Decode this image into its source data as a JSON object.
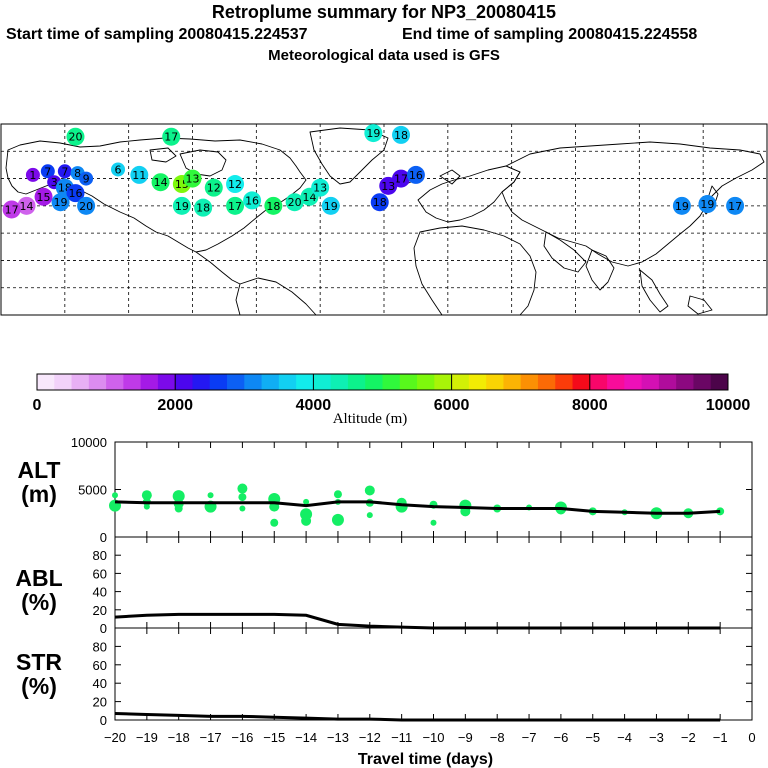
{
  "header": {
    "title": "Retroplume summary for NP3_20080415",
    "start_label": "Start time of sampling 20080415.224537",
    "end_label": "End time of sampling 20080415.224558",
    "met_label": "Meteorological data used is GFS"
  },
  "map": {
    "markers": [
      {
        "lon": -165,
        "lat": 62,
        "alt": 1900,
        "label": "1"
      },
      {
        "lon": -158,
        "lat": 64,
        "alt": 2600,
        "label": "7"
      },
      {
        "lon": -150,
        "lat": 64,
        "alt": 2300,
        "label": "7"
      },
      {
        "lon": -144,
        "lat": 63,
        "alt": 3000,
        "label": "8"
      },
      {
        "lon": -140,
        "lat": 60,
        "alt": 2800,
        "label": "9"
      },
      {
        "lon": -155,
        "lat": 58,
        "alt": 2000,
        "label": "3"
      },
      {
        "lon": -150,
        "lat": 55,
        "alt": 3200,
        "label": "18"
      },
      {
        "lon": -145,
        "lat": 52,
        "alt": 2600,
        "label": "16"
      },
      {
        "lon": -160,
        "lat": 50,
        "alt": 1600,
        "label": "15"
      },
      {
        "lon": -168,
        "lat": 45,
        "alt": 1200,
        "label": "14"
      },
      {
        "lon": -152,
        "lat": 47,
        "alt": 3000,
        "label": "19"
      },
      {
        "lon": -140,
        "lat": 45,
        "alt": 3200,
        "label": "20"
      },
      {
        "lon": -145,
        "lat": 83,
        "alt": 4600,
        "label": "20"
      },
      {
        "lon": -125,
        "lat": 65,
        "alt": 3500,
        "label": "6"
      },
      {
        "lon": -115,
        "lat": 62,
        "alt": 3700,
        "label": "11"
      },
      {
        "lon": -105,
        "lat": 58,
        "alt": 4800,
        "label": "14"
      },
      {
        "lon": -95,
        "lat": 57,
        "alt": 5600,
        "label": "15"
      },
      {
        "lon": -90,
        "lat": 60,
        "alt": 5000,
        "label": "13"
      },
      {
        "lon": -80,
        "lat": 55,
        "alt": 4500,
        "label": "12"
      },
      {
        "lon": -70,
        "lat": 57,
        "alt": 3900,
        "label": "12"
      },
      {
        "lon": -100,
        "lat": 83,
        "alt": 4700,
        "label": "17"
      },
      {
        "lon": -95,
        "lat": 45,
        "alt": 4400,
        "label": "19"
      },
      {
        "lon": -85,
        "lat": 44,
        "alt": 4300,
        "label": "18"
      },
      {
        "lon": -70,
        "lat": 45,
        "alt": 4500,
        "label": "17"
      },
      {
        "lon": -62,
        "lat": 48,
        "alt": 4200,
        "label": "16"
      },
      {
        "lon": -52,
        "lat": 45,
        "alt": 4800,
        "label": "18"
      },
      {
        "lon": -42,
        "lat": 47,
        "alt": 4400,
        "label": "20"
      },
      {
        "lon": -35,
        "lat": 50,
        "alt": 4400,
        "label": "14"
      },
      {
        "lon": -30,
        "lat": 55,
        "alt": 4000,
        "label": "13"
      },
      {
        "lon": -25,
        "lat": 45,
        "alt": 3500,
        "label": "19"
      },
      {
        "lon": -5,
        "lat": 85,
        "alt": 4100,
        "label": "19"
      },
      {
        "lon": 8,
        "lat": 84,
        "alt": 3600,
        "label": "18"
      },
      {
        "lon": 8,
        "lat": 60,
        "alt": 2200,
        "label": "17"
      },
      {
        "lon": 2,
        "lat": 56,
        "alt": 2000,
        "label": "13"
      },
      {
        "lon": -2,
        "lat": 47,
        "alt": 2600,
        "label": "18"
      },
      {
        "lon": 15,
        "lat": 62,
        "alt": 2800,
        "label": "16"
      },
      {
        "lon": 140,
        "lat": 45,
        "alt": 3100,
        "label": "19"
      },
      {
        "lon": 152,
        "lat": 46,
        "alt": 3000,
        "label": "19"
      },
      {
        "lon": 165,
        "lat": 45,
        "alt": 3200,
        "label": "17"
      },
      {
        "lon": -175,
        "lat": 43,
        "alt": 1300,
        "label": "17"
      }
    ]
  },
  "colorbar": {
    "min": 0,
    "max": 10000,
    "tick_labels": [
      "0",
      "2000",
      "4000",
      "6000",
      "8000",
      "10000"
    ],
    "title": "Altitude (m)",
    "colors": [
      "#f8e8fc",
      "#f2d2fa",
      "#e8b0f5",
      "#dc8cf0",
      "#cf62ec",
      "#bf3ae8",
      "#a41ae6",
      "#7c0aea",
      "#4c06ee",
      "#2418f2",
      "#0a3cf4",
      "#0c60f4",
      "#0e88f4",
      "#10aef4",
      "#12d0f2",
      "#12ecec",
      "#10eed4",
      "#0ef0b4",
      "#0cf28c",
      "#14f464",
      "#30f83c",
      "#58f81c",
      "#7ef80c",
      "#a8f408",
      "#d2f006",
      "#f2ec04",
      "#fad404",
      "#fcb404",
      "#fc9004",
      "#fc6a06",
      "#fc3c0a",
      "#f40a1a",
      "#f8066a",
      "#f80c9a",
      "#ee10b8",
      "#d410b4",
      "#b00c9c",
      "#8c0880",
      "#6a0664",
      "#4c044a"
    ]
  },
  "chart_data": [
    {
      "type": "scatter",
      "name": "ALT",
      "ylabel_line1": "ALT",
      "ylabel_line2": "(m)",
      "ylim": [
        0,
        10000
      ],
      "y_ticks": [
        "0",
        "5000",
        "10000"
      ],
      "xlim": [
        -20,
        0
      ],
      "mean_line": {
        "x": [
          -20,
          -19,
          -18,
          -17,
          -16,
          -15,
          -14,
          -13,
          -12,
          -11,
          -10,
          -9,
          -8,
          -7,
          -6,
          -5,
          -4,
          -3,
          -2,
          -1
        ],
        "y": [
          3700,
          3600,
          3600,
          3600,
          3600,
          3600,
          3300,
          3700,
          3700,
          3400,
          3200,
          3100,
          3000,
          3000,
          3000,
          2700,
          2600,
          2500,
          2500,
          2700
        ]
      },
      "points": {
        "x": [
          -20,
          -20,
          -19,
          -19,
          -19,
          -18,
          -18,
          -18,
          -17,
          -17,
          -16,
          -16,
          -16,
          -15,
          -15,
          -15,
          -14,
          -14,
          -14,
          -13,
          -13,
          -13,
          -12,
          -12,
          -12,
          -11,
          -11,
          -10,
          -10,
          -9,
          -9,
          -8,
          -7,
          -6,
          -6,
          -5,
          -4,
          -3,
          -2,
          -1
        ],
        "y": [
          4400,
          3300,
          4400,
          3700,
          3200,
          4300,
          3500,
          3000,
          4400,
          3200,
          5100,
          4200,
          3000,
          4000,
          3200,
          1500,
          3700,
          2400,
          1700,
          4500,
          3700,
          1800,
          4900,
          3600,
          2300,
          3200,
          3600,
          3400,
          1500,
          3300,
          2700,
          3000,
          3100,
          3100,
          2900,
          2700,
          2600,
          2500,
          2500,
          2700
        ]
      },
      "point_color": "#14ee64"
    },
    {
      "type": "line",
      "name": "ABL",
      "ylabel_line1": "ABL",
      "ylabel_line2": "(%)",
      "ylim": [
        0,
        100
      ],
      "y_ticks": [
        "0",
        "20",
        "40",
        "60",
        "80"
      ],
      "xlim": [
        -20,
        0
      ],
      "x": [
        -20,
        -19,
        -18,
        -17,
        -16,
        -15,
        -14,
        -13,
        -12,
        -11,
        -10,
        -9,
        -8,
        -7,
        -6,
        -5,
        -4,
        -3,
        -2,
        -1
      ],
      "y": [
        12,
        14,
        15,
        15,
        15,
        15,
        14,
        4,
        2,
        1,
        0,
        0,
        0,
        0,
        0,
        0,
        0,
        0,
        0,
        0
      ]
    },
    {
      "type": "line",
      "name": "STR",
      "ylabel_line1": "STR",
      "ylabel_line2": "(%)",
      "ylim": [
        0,
        100
      ],
      "y_ticks": [
        "0",
        "20",
        "40",
        "60",
        "80"
      ],
      "xlim": [
        -20,
        0
      ],
      "x": [
        -20,
        -19,
        -18,
        -17,
        -16,
        -15,
        -14,
        -13,
        -12,
        -11,
        -10,
        -9,
        -8,
        -7,
        -6,
        -5,
        -4,
        -3,
        -2,
        -1
      ],
      "y": [
        7,
        6,
        5,
        4,
        4,
        3,
        2,
        1,
        1,
        0,
        0,
        0,
        0,
        0,
        0,
        0,
        0,
        0,
        0,
        0
      ],
      "xlabel": "Travel time (days)",
      "x_ticks": [
        "−20",
        "−19",
        "−18",
        "−17",
        "−16",
        "−15",
        "−14",
        "−13",
        "−12",
        "−11",
        "−10",
        "−9",
        "−8",
        "−7",
        "−6",
        "−5",
        "−4",
        "−3",
        "−2",
        "−1",
        "0"
      ]
    }
  ]
}
